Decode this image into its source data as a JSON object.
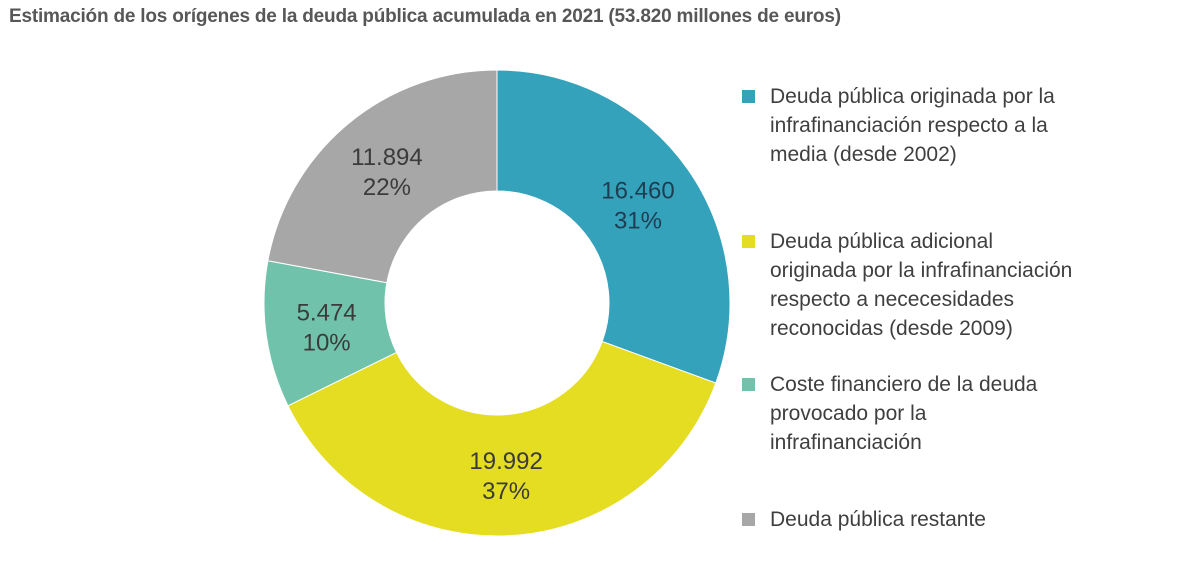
{
  "title": "Estimación de los orígenes de la deuda pública acumulada en 2021 (53.820 millones de euros)",
  "chart_data": {
    "type": "pie",
    "subtype": "donut",
    "title": "Estimación de los orígenes de la deuda pública acumulada en 2021 (53.820 millones de euros)",
    "unit": "millones de euros",
    "total": 53820,
    "total_label": "53.820",
    "legend_position": "right",
    "slices": [
      {
        "name": "Deuda pública originada por la infrafinanciación respecto a la media (desde 2002)",
        "legend_lines": "Deuda pública originada por la\ninfrafinanciación respecto a la\nmedia (desde 2002)",
        "value": 16460,
        "value_label": "16.460",
        "percent": 31,
        "percent_label": "31%",
        "color": "#35A2BC",
        "label_color": "#1E3D52"
      },
      {
        "name": "Deuda pública adicional originada por la infrafinanciación respecto a nececesidades reconocidas (desde 2009)",
        "legend_lines": "Deuda pública adicional\noriginada por la infrafinanciación\nrespecto a nececesidades\nreconocidas (desde 2009)",
        "value": 19992,
        "value_label": "19.992",
        "percent": 37,
        "percent_label": "37%",
        "color": "#E5DD21",
        "label_color": "#3B3B3B"
      },
      {
        "name": "Coste financiero de la deuda provocado por la infrafinanciación",
        "legend_lines": "Coste financiero de la deuda\nprovocado por la\ninfrafinanciación",
        "value": 5474,
        "value_label": "5.474",
        "percent": 10,
        "percent_label": "10%",
        "color": "#70C3AA",
        "label_color": "#3B3B3B"
      },
      {
        "name": "Deuda pública restante",
        "legend_lines": "Deuda pública restante",
        "value": 11894,
        "value_label": "11.894",
        "percent": 22,
        "percent_label": "22%",
        "color": "#A7A7A7",
        "label_color": "#3B3B3B"
      }
    ]
  },
  "colors": {
    "background": "#FFFFFF",
    "title_text": "#575757",
    "legend_text": "#3F3F3F"
  }
}
